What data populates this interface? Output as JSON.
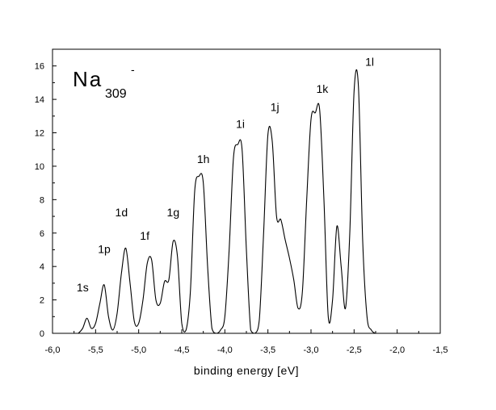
{
  "chart_data": {
    "type": "line",
    "title": "",
    "xlabel": "binding energy [eV]",
    "ylabel": "",
    "xlim": [
      -6.0,
      -1.5
    ],
    "ylim": [
      0,
      17
    ],
    "x_ticks": [
      -6.0,
      -5.5,
      -5.0,
      -4.5,
      -4.0,
      -3.5,
      -3.0,
      -2.5,
      -2.0,
      -1.5
    ],
    "x_tick_labels": [
      "-6,0",
      "-5,5",
      "-5,0",
      "-4,5",
      "-4,0",
      "-3,5",
      "-3,0",
      "-2,5",
      "-2,0",
      "-1,5"
    ],
    "y_ticks": [
      0,
      2,
      4,
      6,
      8,
      10,
      12,
      14,
      16
    ],
    "y_tick_labels": [
      "0",
      "2",
      "4",
      "6",
      "8",
      "10",
      "12",
      "14",
      "16"
    ],
    "grid": false,
    "legend": "none",
    "line_color": "#000000",
    "species": {
      "main": "Na",
      "sub": "309",
      "sup": "-"
    },
    "annotations": [
      {
        "text": "1s",
        "x": -5.65,
        "y": 2.5
      },
      {
        "text": "1p",
        "x": -5.4,
        "y": 4.8
      },
      {
        "text": "1d",
        "x": -5.2,
        "y": 7.0
      },
      {
        "text": "1f",
        "x": -4.93,
        "y": 5.6
      },
      {
        "text": "1g",
        "x": -4.6,
        "y": 7.0
      },
      {
        "text": "1h",
        "x": -4.25,
        "y": 10.2
      },
      {
        "text": "1i",
        "x": -3.82,
        "y": 12.3
      },
      {
        "text": "1j",
        "x": -3.42,
        "y": 13.3
      },
      {
        "text": "1k",
        "x": -2.87,
        "y": 14.4
      },
      {
        "text": "1l",
        "x": -2.32,
        "y": 16.0
      }
    ],
    "series": [
      {
        "x": [
          -5.7,
          -5.65,
          -5.6,
          -5.55,
          -5.5,
          -5.45,
          -5.4,
          -5.35,
          -5.3,
          -5.25,
          -5.2,
          -5.15,
          -5.1,
          -5.05,
          -5.0,
          -4.95,
          -4.9,
          -4.85,
          -4.8,
          -4.75,
          -4.7,
          -4.65,
          -4.6,
          -4.55,
          -4.5,
          -4.45,
          -4.4,
          -4.35,
          -4.3,
          -4.25,
          -4.2,
          -4.15,
          -4.1,
          -4.05,
          -4.0,
          -3.95,
          -3.9,
          -3.85,
          -3.8,
          -3.75,
          -3.7,
          -3.65,
          -3.6,
          -3.55,
          -3.5,
          -3.45,
          -3.4,
          -3.35,
          -3.3,
          -3.25,
          -3.2,
          -3.15,
          -3.1,
          -3.05,
          -3.0,
          -2.95,
          -2.9,
          -2.85,
          -2.8,
          -2.75,
          -2.7,
          -2.65,
          -2.6,
          -2.55,
          -2.5,
          -2.45,
          -2.4,
          -2.35,
          -2.3,
          -2.25,
          -2.2
        ],
        "y": [
          0.0,
          0.3,
          0.9,
          0.3,
          0.6,
          1.8,
          2.9,
          1.0,
          0.2,
          1.2,
          3.6,
          5.1,
          3.0,
          0.7,
          0.6,
          2.0,
          4.2,
          4.4,
          2.0,
          1.8,
          3.1,
          3.2,
          5.5,
          4.6,
          0.6,
          0.2,
          2.5,
          8.5,
          9.4,
          9.0,
          4.0,
          0.3,
          0.0,
          0.2,
          1.0,
          5.0,
          10.5,
          11.3,
          11.0,
          5.0,
          0.2,
          0.0,
          0.8,
          6.0,
          11.9,
          11.5,
          7.0,
          6.8,
          5.6,
          4.5,
          3.2,
          1.5,
          2.5,
          8.0,
          12.8,
          13.2,
          13.4,
          8.0,
          1.0,
          2.0,
          6.4,
          4.0,
          1.5,
          6.0,
          14.5,
          14.8,
          5.5,
          1.0,
          0.2,
          0.0,
          0.0
        ]
      }
    ]
  }
}
